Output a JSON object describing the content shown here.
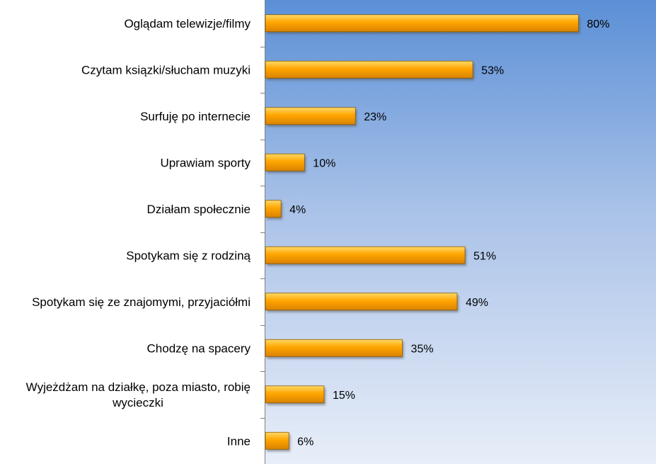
{
  "chart_data": {
    "type": "bar",
    "orientation": "horizontal",
    "categories": [
      [
        "Oglądam telewizje/filmy"
      ],
      [
        "Czytam ksiązki/słucham muzyki"
      ],
      [
        "Surfuję po internecie"
      ],
      [
        "Uprawiam sporty"
      ],
      [
        "Działam społecznie"
      ],
      [
        "Spotykam się z rodziną"
      ],
      [
        "Spotykam się ze znajomymi, przyjaciółmi"
      ],
      [
        "Chodzę na spacery"
      ],
      [
        "Wyjeżdżam na działkę, poza miasto, robię",
        "wycieczki"
      ],
      [
        "Inne"
      ]
    ],
    "values": [
      80,
      53,
      23,
      10,
      4,
      51,
      49,
      35,
      15,
      6
    ],
    "value_labels": [
      "80%",
      "53%",
      "23%",
      "10%",
      "4%",
      "51%",
      "49%",
      "35%",
      "15%",
      "6%"
    ],
    "unit": "%",
    "xlim": [
      0,
      100
    ],
    "grid": false,
    "legend": "none",
    "colors": {
      "bar_top": "#FFD966",
      "bar_mid": "#FFA500",
      "bar_bottom": "#D98200",
      "bar_stroke": "#8A5A00",
      "shadow": "#555555",
      "bg_top": "#5B8FD6",
      "bg_mid": "#A9C2E8",
      "bg_bottom": "#E8EEF8",
      "axis": "#7F7F7F"
    }
  }
}
